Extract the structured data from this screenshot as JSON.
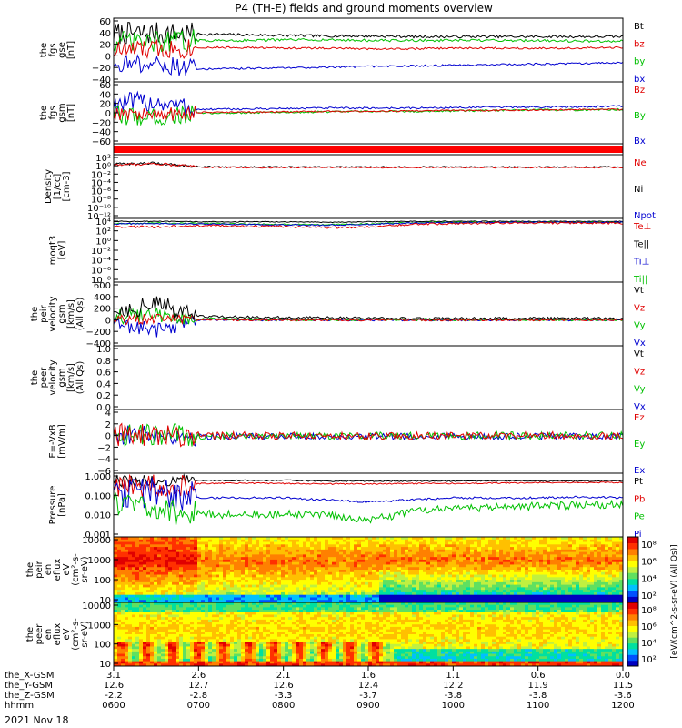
{
  "chart_data": {
    "type": "line",
    "title": "P4 (TH-E) fields and ground moments overview",
    "date_label": "2021 Nov 18",
    "x_ticks": [
      {
        "hhmm": "0600",
        "x": "3.1",
        "y": "12.6",
        "z": "-2.2"
      },
      {
        "hhmm": "0700",
        "x": "2.6",
        "y": "12.7",
        "z": "-2.8"
      },
      {
        "hhmm": "0800",
        "x": "2.1",
        "y": "12.6",
        "z": "-3.3"
      },
      {
        "hhmm": "0900",
        "x": "1.6",
        "y": "12.4",
        "z": "-3.7"
      },
      {
        "hhmm": "1000",
        "x": "1.1",
        "y": "12.2",
        "z": "-3.8"
      },
      {
        "hhmm": "1100",
        "x": "0.6",
        "y": "11.9",
        "z": "-3.8"
      },
      {
        "hhmm": "1200",
        "x": "0.0",
        "y": "11.5",
        "z": "-3.6"
      }
    ],
    "x_rows": [
      "the_X-GSM",
      "the_Y-GSM",
      "the_Z-GSM",
      "hhmm"
    ],
    "panels": [
      {
        "ylabel": [
          "the",
          "fgs",
          "gse",
          "[nT]"
        ],
        "scale": "linear",
        "ylim": [
          -40,
          60
        ],
        "ticks": [
          "60",
          "40",
          "20",
          "0",
          "−20",
          "−40"
        ],
        "legend": [
          {
            "label": "Bt",
            "color": "#000000"
          },
          {
            "label": "bz",
            "color": "#e00000"
          },
          {
            "label": "by",
            "color": "#00c000"
          },
          {
            "label": "bx",
            "color": "#0000d0"
          }
        ],
        "series": [
          {
            "color": "#000000",
            "base": [
              36,
              36,
              35,
              34,
              33,
              32,
              32,
              31,
              31,
              31,
              31,
              31,
              31
            ],
            "noise": 2,
            "early_noise": 18
          },
          {
            "color": "#00c000",
            "base": [
              22,
              22,
              25,
              25,
              26,
              26,
              25,
              25,
              25,
              25,
              25,
              24,
              24
            ],
            "noise": 2,
            "early_noise": 18
          },
          {
            "color": "#e00000",
            "base": [
              10,
              11,
              14,
              14,
              13,
              13,
              12,
              12,
              13,
              13,
              13,
              13,
              14
            ],
            "noise": 1.5,
            "early_noise": 16
          },
          {
            "color": "#0000d0",
            "base": [
              -10,
              -12,
              -20,
              -19,
              -18,
              -17,
              -16,
              -15,
              -14,
              -13,
              -12,
              -11,
              -10
            ],
            "noise": 1.5,
            "early_noise": 14
          }
        ]
      },
      {
        "ylabel": [
          "the",
          "fgs",
          "gsm",
          "[nT]"
        ],
        "scale": "linear",
        "ylim": [
          -70,
          60
        ],
        "ticks": [
          "60",
          "40",
          "20",
          "0",
          "−20",
          "−40",
          "−60"
        ],
        "legend": [
          {
            "label": "Bz",
            "color": "#e00000"
          },
          {
            "label": "By",
            "color": "#00c000"
          },
          {
            "label": "Bx",
            "color": "#0000d0"
          }
        ],
        "series": [
          {
            "color": "#0000d0",
            "base": [
              15,
              18,
              2,
              3,
              4,
              5,
              5,
              5,
              6,
              7,
              7,
              8,
              9
            ],
            "noise": 2,
            "early_noise": 22
          },
          {
            "color": "#00c000",
            "base": [
              -10,
              -15,
              -6,
              -5,
              -4,
              -3,
              -2,
              -2,
              -1,
              0,
              1,
              1,
              2
            ],
            "noise": 2,
            "early_noise": 20
          },
          {
            "color": "#e00000",
            "base": [
              -5,
              -10,
              -4,
              -4,
              -3,
              -2,
              -2,
              -1,
              0,
              0,
              1,
              2,
              2
            ],
            "noise": 1.5,
            "early_noise": 15
          }
        ]
      },
      {
        "ylabel": [],
        "scale": "bar",
        "ylim": [
          0,
          1
        ],
        "ticks": [],
        "legend": [],
        "series": []
      },
      {
        "ylabel": [
          "Density",
          "[1/cc]",
          "[cm-3]"
        ],
        "scale": "log",
        "ylim": [
          -12,
          3
        ],
        "ticks": [
          "10²",
          "10⁰",
          "10⁻²",
          "10⁻⁴",
          "10⁻⁶",
          "10⁻⁸",
          "10⁻¹⁰",
          "10⁻¹²"
        ],
        "legend": [
          {
            "label": "Ne",
            "color": "#e00000"
          },
          {
            "label": "Ni",
            "color": "#000000"
          },
          {
            "label": "Npot",
            "color": "#0000d0"
          }
        ],
        "series": [
          {
            "color": "#000000",
            "base": [
              0.8,
              1.0,
              0.2,
              0.1,
              0.1,
              0.1,
              0.1,
              0.1,
              0.1,
              0.1,
              0.1,
              0.1,
              0.1
            ],
            "noise": 0.15,
            "early_noise": 0.3
          },
          {
            "color": "#e00000",
            "base": [
              0.6,
              0.9,
              0.1,
              0.0,
              0.0,
              0.0,
              0.0,
              0.0,
              0.0,
              0.0,
              0.0,
              0.0,
              0.0
            ],
            "noise": 0.15,
            "early_noise": 0.3
          }
        ]
      },
      {
        "ylabel": [
          "moqt3",
          "[eV]"
        ],
        "scale": "log",
        "ylim": [
          -10,
          5
        ],
        "ticks": [
          "10⁴",
          "10²",
          "10⁰",
          "10⁻²",
          "10⁻⁴",
          "10⁻⁶",
          "10⁻⁸"
        ],
        "legend": [
          {
            "label": "Te⊥",
            "color": "#e00000"
          },
          {
            "label": "Te||",
            "color": "#000000"
          },
          {
            "label": "Ti⊥",
            "color": "#0000d0"
          },
          {
            "label": "Ti||",
            "color": "#00c000"
          }
        ],
        "series": [
          {
            "color": "#000000",
            "base": [
              4.3,
              4.3,
              4.2,
              4.2,
              4.2,
              4.1,
              4.2,
              4.3,
              4.3,
              4.3,
              4.3,
              4.3,
              4.3
            ],
            "noise": 0.1,
            "early_noise": 0.1
          },
          {
            "color": "#00c000",
            "base": [
              3.8,
              3.9,
              3.8,
              3.7,
              3.6,
              3.5,
              3.7,
              4.0,
              4.1,
              4.1,
              4.1,
              4.1,
              4.1
            ],
            "noise": 0.15,
            "early_noise": 0.15
          },
          {
            "color": "#0000d0",
            "base": [
              3.7,
              3.8,
              3.7,
              3.6,
              3.5,
              3.4,
              3.6,
              3.9,
              4.0,
              4.1,
              4.1,
              4.1,
              4.1
            ],
            "noise": 0.15,
            "early_noise": 0.15
          },
          {
            "color": "#e00000",
            "base": [
              3.0,
              3.0,
              3.3,
              3.2,
              3.1,
              2.8,
              3.0,
              3.6,
              3.8,
              3.9,
              3.9,
              3.9,
              3.9
            ],
            "noise": 0.25,
            "early_noise": 0.25
          }
        ]
      },
      {
        "ylabel": [
          "the",
          "peir",
          "velocity",
          "gsm",
          "[km/s]",
          "(All Qs)"
        ],
        "scale": "linear",
        "ylim": [
          -400,
          600
        ],
        "ticks": [
          "600",
          "400",
          "200",
          "0",
          "−200",
          "−400"
        ],
        "legend": [
          {
            "label": "Vt",
            "color": "#000000"
          },
          {
            "label": "Vz",
            "color": "#e00000"
          },
          {
            "label": "Vy",
            "color": "#00c000"
          },
          {
            "label": "Vx",
            "color": "#0000d0"
          }
        ],
        "series": [
          {
            "color": "#0000d0",
            "base": [
              -50,
              -150,
              10,
              5,
              5,
              5,
              5,
              5,
              5,
              5,
              5,
              5,
              5
            ],
            "noise": 15,
            "early_noise": 120
          },
          {
            "color": "#00c000",
            "base": [
              60,
              80,
              20,
              15,
              10,
              10,
              10,
              10,
              10,
              10,
              10,
              10,
              10
            ],
            "noise": 20,
            "early_noise": 120
          },
          {
            "color": "#e00000",
            "base": [
              10,
              20,
              10,
              5,
              5,
              5,
              5,
              5,
              5,
              5,
              5,
              5,
              5
            ],
            "noise": 15,
            "early_noise": 80
          },
          {
            "color": "#000000",
            "base": [
              150,
              250,
              60,
              50,
              45,
              40,
              35,
              30,
              30,
              30,
              30,
              30,
              30
            ],
            "noise": 20,
            "early_noise": 150
          }
        ]
      },
      {
        "ylabel": [
          "the",
          "peer",
          "velocity",
          "gsm",
          "[km/s]",
          "(All Qs)"
        ],
        "scale": "linear",
        "ylim": [
          0,
          1
        ],
        "ticks": [
          "1.0",
          "0.8",
          "0.6",
          "0.4",
          "0.2",
          "0.0"
        ],
        "legend": [
          {
            "label": "Vt",
            "color": "#000000"
          },
          {
            "label": "Vz",
            "color": "#e00000"
          },
          {
            "label": "Vy",
            "color": "#00c000"
          },
          {
            "label": "Vx",
            "color": "#0000d0"
          }
        ],
        "series": []
      },
      {
        "ylabel": [
          "E=-VxB",
          "[mV/m]"
        ],
        "scale": "linear",
        "ylim": [
          -6,
          4
        ],
        "ticks": [
          "4",
          "2",
          "0",
          "−2",
          "−4",
          "−6"
        ],
        "legend": [
          {
            "label": "Ez",
            "color": "#e00000"
          },
          {
            "label": "Ey",
            "color": "#00c000"
          },
          {
            "label": "Ex",
            "color": "#0000d0"
          }
        ],
        "series": [
          {
            "color": "#0000d0",
            "base": [
              0,
              0,
              -0.2,
              -0.2,
              -0.2,
              -0.2,
              -0.2,
              -0.2,
              -0.2,
              -0.2,
              -0.2,
              -0.2,
              -0.2
            ],
            "noise": 0.5,
            "early_noise": 1.5
          },
          {
            "color": "#00c000",
            "base": [
              0,
              0,
              -0.1,
              -0.1,
              -0.1,
              -0.1,
              -0.1,
              -0.1,
              -0.1,
              -0.1,
              -0.1,
              -0.1,
              -0.1
            ],
            "noise": 0.6,
            "early_noise": 1.8
          },
          {
            "color": "#e00000",
            "base": [
              0,
              0,
              -0.1,
              -0.1,
              -0.1,
              -0.1,
              -0.1,
              -0.1,
              -0.1,
              -0.1,
              -0.1,
              -0.1,
              -0.1
            ],
            "noise": 0.6,
            "early_noise": 1.8
          }
        ]
      },
      {
        "ylabel": [
          "Pressure",
          "[nPa]"
        ],
        "scale": "log",
        "ylim": [
          -3,
          0.1
        ],
        "ticks": [
          "1.000",
          "0.100",
          "0.010",
          "0.001"
        ],
        "legend": [
          {
            "label": "Pt",
            "color": "#000000"
          },
          {
            "label": "Pb",
            "color": "#e00000"
          },
          {
            "label": "Pe",
            "color": "#00c000"
          },
          {
            "label": "Pi",
            "color": "#0000d0"
          }
        ],
        "series": [
          {
            "color": "#000000",
            "base": [
              -0.3,
              -0.3,
              -0.25,
              -0.25,
              -0.25,
              -0.28,
              -0.28,
              -0.28,
              -0.28,
              -0.28,
              -0.28,
              -0.28,
              -0.28
            ],
            "noise": 0.03,
            "early_noise": 0.3
          },
          {
            "color": "#e00000",
            "base": [
              -0.6,
              -0.5,
              -0.4,
              -0.38,
              -0.4,
              -0.42,
              -0.42,
              -0.4,
              -0.4,
              -0.38,
              -0.36,
              -0.35,
              -0.35
            ],
            "noise": 0.03,
            "early_noise": 0.6
          },
          {
            "color": "#0000d0",
            "base": [
              -0.8,
              -0.9,
              -1.1,
              -1.1,
              -1.1,
              -1.2,
              -1.3,
              -1.2,
              -1.1,
              -1.1,
              -1.1,
              -1.05,
              -1.1
            ],
            "noise": 0.05,
            "early_noise": 0.8
          },
          {
            "color": "#00c000",
            "base": [
              -1.3,
              -1.6,
              -1.9,
              -1.9,
              -1.9,
              -1.9,
              -2.2,
              -1.8,
              -1.6,
              -1.55,
              -1.5,
              -1.45,
              -1.4
            ],
            "noise": 0.2,
            "early_noise": 0.7
          }
        ]
      },
      {
        "ylabel": [
          "the",
          "peir",
          "en",
          "eflux",
          "eV",
          "(cm²-s-",
          "sr-eV)"
        ],
        "scale": "spectrogram",
        "ylim": [
          0.9,
          4.3
        ],
        "ticks": [
          "10000",
          "1000",
          "100",
          "10"
        ],
        "series": []
      },
      {
        "ylabel": [
          "the",
          "peer",
          "en",
          "eflux",
          "eV",
          "(cm²-s-",
          "sr-eV)"
        ],
        "scale": "spectrogram",
        "ylim": [
          0.9,
          4.3
        ],
        "ticks": [
          "10000",
          "1000",
          "100",
          "10"
        ],
        "series": []
      }
    ],
    "colorbars": [
      {
        "ticks": [
          "10⁸",
          "10⁶",
          "10⁴",
          "10²"
        ],
        "unit": "eV/(cm^2-s-sr-eV) (All Qs)"
      },
      {
        "ticks": [
          "10⁸",
          "10⁶",
          "10⁴",
          "10²"
        ],
        "unit": "eV/(cm^2-s-sr-eV)"
      }
    ],
    "colorbar_label": "[eV/(cm^2-s-sr-eV) (All Qs)]"
  }
}
